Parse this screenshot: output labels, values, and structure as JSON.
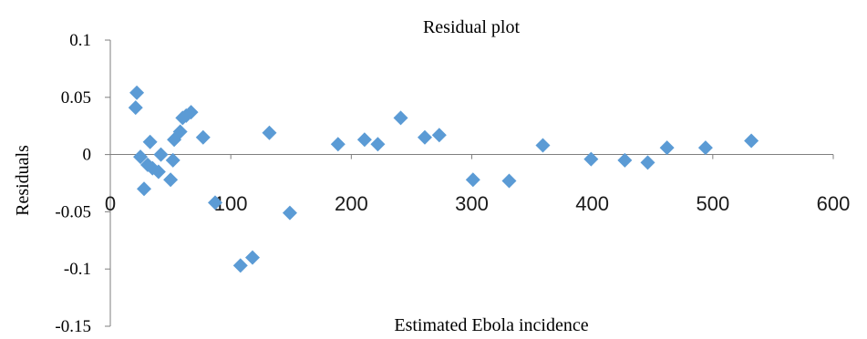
{
  "chart_data": {
    "type": "scatter",
    "title": "Residual plot",
    "xlabel": "Estimated Ebola incidence",
    "ylabel": "Residuals",
    "xlim": [
      0,
      600
    ],
    "ylim": [
      -0.15,
      0.1
    ],
    "xticks": [
      "0",
      "100",
      "200",
      "300",
      "400",
      "500",
      "600"
    ],
    "yticks": [
      "0.1",
      "0.05",
      "0",
      "-0.05",
      "-0.1",
      "-0.15"
    ],
    "grid": false,
    "legend": "none",
    "marker_color": "#5b9bd5",
    "series": [
      {
        "points": [
          [
            22,
            0.054
          ],
          [
            21,
            0.041
          ],
          [
            25,
            -0.002
          ],
          [
            28,
            -0.03
          ],
          [
            31,
            -0.009
          ],
          [
            33,
            0.011
          ],
          [
            35,
            -0.012
          ],
          [
            40,
            -0.015
          ],
          [
            42,
            0.0
          ],
          [
            50,
            -0.022
          ],
          [
            52,
            -0.005
          ],
          [
            53,
            0.013
          ],
          [
            58,
            0.02
          ],
          [
            60,
            0.032
          ],
          [
            63,
            0.034
          ],
          [
            67,
            0.037
          ],
          [
            77,
            0.015
          ],
          [
            87,
            -0.042
          ],
          [
            108,
            -0.097
          ],
          [
            118,
            -0.09
          ],
          [
            132,
            0.019
          ],
          [
            149,
            -0.051
          ],
          [
            189,
            0.009
          ],
          [
            211,
            0.013
          ],
          [
            222,
            0.009
          ],
          [
            241,
            0.032
          ],
          [
            261,
            0.015
          ],
          [
            273,
            0.017
          ],
          [
            301,
            -0.022
          ],
          [
            331,
            -0.023
          ],
          [
            359,
            0.008
          ],
          [
            399,
            -0.004
          ],
          [
            427,
            -0.005
          ],
          [
            446,
            -0.007
          ],
          [
            462,
            0.006
          ],
          [
            494,
            0.006
          ],
          [
            532,
            0.012
          ]
        ]
      }
    ]
  }
}
